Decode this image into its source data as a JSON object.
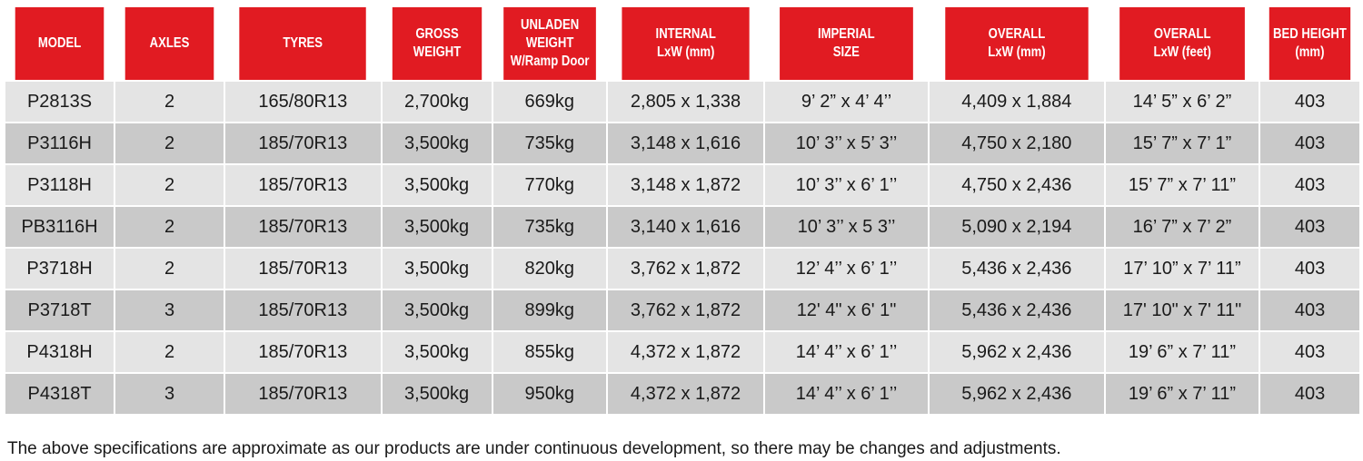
{
  "colors": {
    "header_bg": "#e11b22",
    "header_text": "#ffffff",
    "row_light": "#e4e4e4",
    "row_dark": "#c9c9c9"
  },
  "columns": [
    [
      "MODEL"
    ],
    [
      "AXLES"
    ],
    [
      "TYRES"
    ],
    [
      "GROSS",
      "WEIGHT"
    ],
    [
      "UNLADEN",
      "WEIGHT",
      "W/Ramp Door"
    ],
    [
      "INTERNAL",
      "LxW (mm)"
    ],
    [
      "IMPERIAL",
      "SIZE"
    ],
    [
      "OVERALL",
      "LxW (mm)"
    ],
    [
      "OVERALL",
      "LxW (feet)"
    ],
    [
      "BED HEIGHT",
      "(mm)"
    ]
  ],
  "rows": [
    [
      "P2813S",
      "2",
      "165/80R13",
      "2,700kg",
      "669kg",
      "2,805 x 1,338",
      "9’ 2” x 4’ 4’’",
      "4,409 x 1,884",
      "14’ 5” x 6’ 2”",
      "403"
    ],
    [
      "P3116H",
      "2",
      "185/70R13",
      "3,500kg",
      "735kg",
      "3,148 x 1,616",
      "10’ 3’’ x 5’ 3’’",
      "4,750 x 2,180",
      "15’ 7” x 7’ 1”",
      "403"
    ],
    [
      "P3118H",
      "2",
      "185/70R13",
      "3,500kg",
      "770kg",
      "3,148 x 1,872",
      "10’ 3’’ x 6’ 1’’",
      "4,750 x 2,436",
      "15’ 7” x 7’ 11”",
      "403"
    ],
    [
      "PB3116H",
      "2",
      "185/70R13",
      "3,500kg",
      "735kg",
      "3,140 x 1,616",
      "10’ 3’’ x 5  3’’",
      "5,090 x 2,194",
      "16’ 7” x 7’ 2”",
      "403"
    ],
    [
      "P3718H",
      "2",
      "185/70R13",
      "3,500kg",
      "820kg",
      "3,762 x 1,872",
      "12’ 4’’ x 6’ 1’’",
      "5,436 x 2,436",
      "17’ 10” x 7’ 11”",
      "403"
    ],
    [
      "P3718T",
      "3",
      "185/70R13",
      "3,500kg",
      "899kg",
      "3,762 x 1,872",
      "12' 4\" x 6' 1\"",
      "5,436 x 2,436",
      "17' 10\" x 7' 11\"",
      "403"
    ],
    [
      "P4318H",
      "2",
      "185/70R13",
      "3,500kg",
      "855kg",
      "4,372 x 1,872",
      "14’ 4’’ x 6’ 1’’",
      "5,962 x 2,436",
      "19’ 6” x 7’ 11”",
      "403"
    ],
    [
      "P4318T",
      "3",
      "185/70R13",
      "3,500kg",
      "950kg",
      "4,372 x 1,872",
      "14’ 4’’ x 6’ 1’’",
      "5,962 x 2,436",
      "19’ 6” x 7’ 11”",
      "403"
    ]
  ],
  "footnote": "The above specifications are approximate as our products are under continuous development, so there may be changes and adjustments."
}
